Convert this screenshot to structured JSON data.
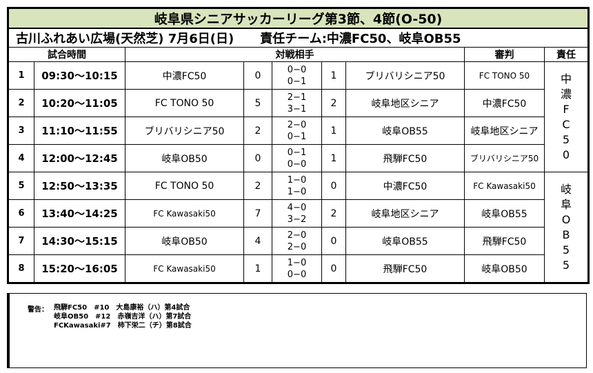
{
  "title": "岐阜県シニアサッカーリーグ第3節、4節(O-50)",
  "subtitle": {
    "venue_date": "古川ふれあい広場(天然芝)  7月6日(日)",
    "responsible": "責任チーム:中濃FC50、岐阜OB55"
  },
  "headers": {
    "time": "試合時間",
    "match": "対戦相手",
    "referee": "審判",
    "responsible": "責任"
  },
  "responsible_groups": [
    {
      "label": "中濃FC50",
      "chars": [
        "中",
        "濃",
        "F",
        "C",
        "5",
        "0"
      ]
    },
    {
      "label": "岐阜OB55",
      "chars": [
        "岐",
        "阜",
        "O",
        "B",
        "5",
        "5"
      ]
    }
  ],
  "matches": [
    {
      "no": "1",
      "time": "09:30〜10:15",
      "home": "中濃FC50",
      "home_score": "0",
      "half1": "0−0",
      "half2": "0−1",
      "away_score": "1",
      "away": "ブリバリシニア50",
      "referee": "FC TONO 50"
    },
    {
      "no": "2",
      "time": "10:20〜11:05",
      "home": "FC TONO 50",
      "home_score": "5",
      "half1": "2−1",
      "half2": "3−1",
      "away_score": "2",
      "away": "岐阜地区シニア",
      "referee": "中濃FC50"
    },
    {
      "no": "3",
      "time": "11:10〜11:55",
      "home": "ブリバリシニア50",
      "home_score": "2",
      "half1": "2−0",
      "half2": "0−1",
      "away_score": "1",
      "away": "岐阜OB55",
      "referee": "岐阜地区シニア"
    },
    {
      "no": "4",
      "time": "12:00〜12:45",
      "home": "岐阜OB50",
      "home_score": "0",
      "half1": "0−1",
      "half2": "0−0",
      "away_score": "1",
      "away": "飛騨FC50",
      "referee": "ブリバリシニア50"
    },
    {
      "no": "5",
      "time": "12:50〜13:35",
      "home": "FC TONO 50",
      "home_score": "2",
      "half1": "1−0",
      "half2": "1−0",
      "away_score": "0",
      "away": "中濃FC50",
      "referee": "FC Kawasaki50"
    },
    {
      "no": "6",
      "time": "13:40〜14:25",
      "home": "FC Kawasaki50",
      "home_score": "7",
      "half1": "4−0",
      "half2": "3−2",
      "away_score": "2",
      "away": "岐阜地区シニア",
      "referee": "岐阜OB55"
    },
    {
      "no": "7",
      "time": "14:30〜15:15",
      "home": "岐阜OB50",
      "home_score": "4",
      "half1": "2−0",
      "half2": "2−0",
      "away_score": "0",
      "away": "岐阜OB55",
      "referee": "飛騨FC50"
    },
    {
      "no": "8",
      "time": "15:20〜16:05",
      "home": "FC Kawasaki50",
      "home_score": "1",
      "half1": "1−0",
      "half2": "0−0",
      "away_score": "0",
      "away": "飛騨FC50",
      "referee": "岐阜OB50"
    }
  ],
  "notes": {
    "label": "警告：",
    "lines": [
      "飛騨FC50　#10　大島康裕（ハ）第4試合",
      "岐阜OB50　#12　赤嶺吉洋（ハ）第7試合",
      "FCKawasaki#7　柿下栄二（チ）第8試合"
    ]
  }
}
